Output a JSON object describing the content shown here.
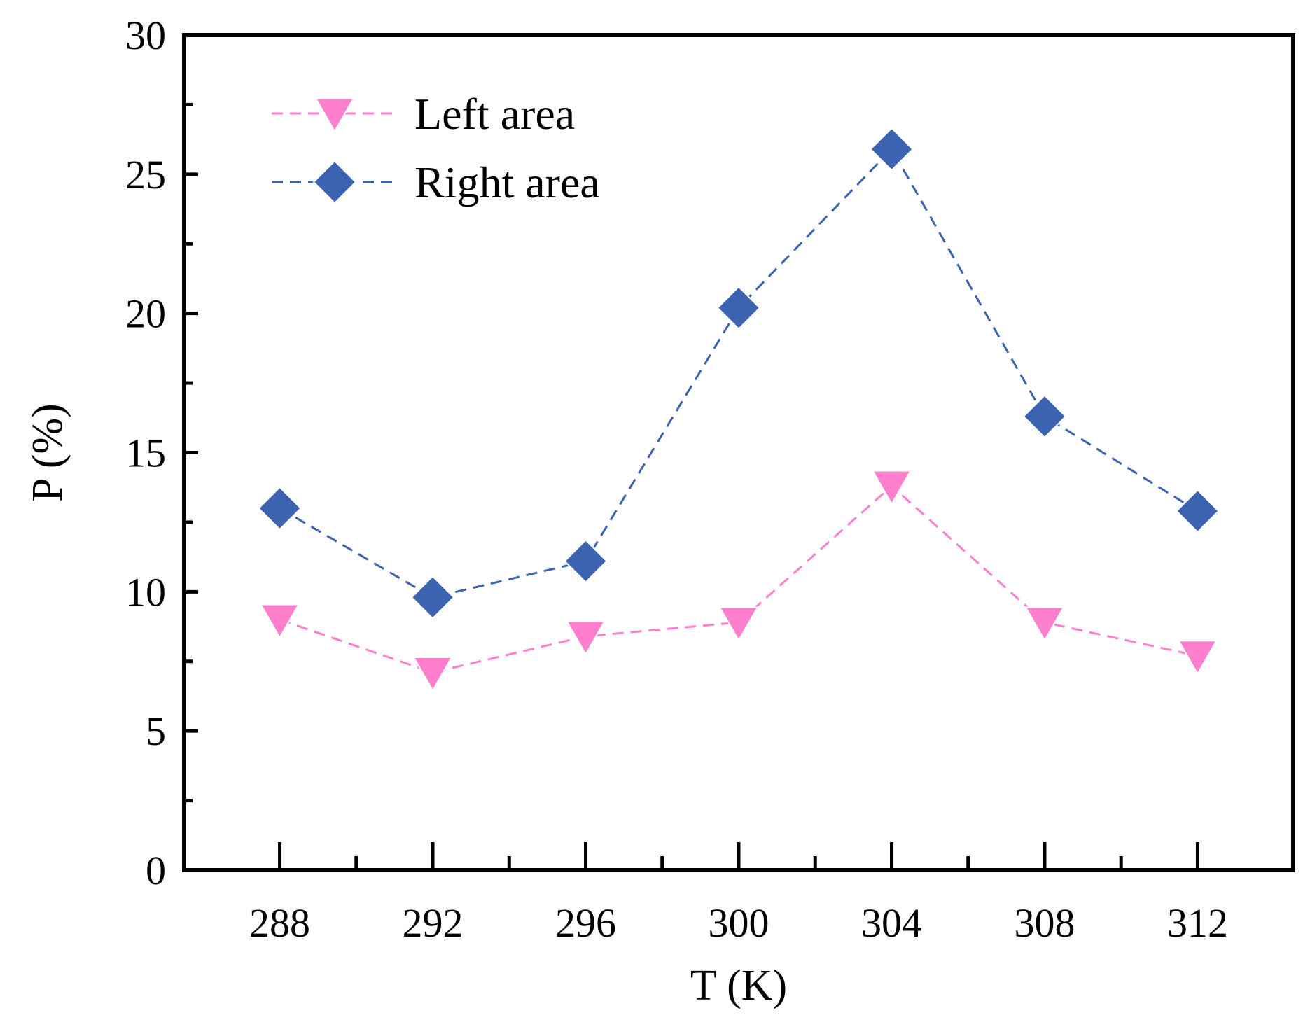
{
  "chart_data": {
    "type": "line",
    "title": "",
    "xlabel": "T (K)",
    "ylabel": "P (%)",
    "xlim": [
      285.5,
      314.5
    ],
    "ylim": [
      0,
      30
    ],
    "x": [
      288,
      292,
      296,
      300,
      304,
      308,
      312
    ],
    "x_ticks": [
      "288",
      "292",
      "296",
      "300",
      "304",
      "308",
      "312"
    ],
    "y_ticks": [
      "0",
      "5",
      "10",
      "15",
      "20",
      "25",
      "30"
    ],
    "grid": false,
    "legend_position": "top-left",
    "series": [
      {
        "name": "Left area",
        "marker": "triangle-down",
        "line": "dashed",
        "color": "#ff7fcf",
        "values": [
          9.0,
          7.1,
          8.4,
          8.9,
          13.8,
          8.9,
          7.7
        ]
      },
      {
        "name": "Right area",
        "marker": "diamond",
        "line": "dashed",
        "color": "#3c63b0",
        "values": [
          13.0,
          9.8,
          11.1,
          20.2,
          25.9,
          16.3,
          12.9
        ]
      }
    ]
  }
}
